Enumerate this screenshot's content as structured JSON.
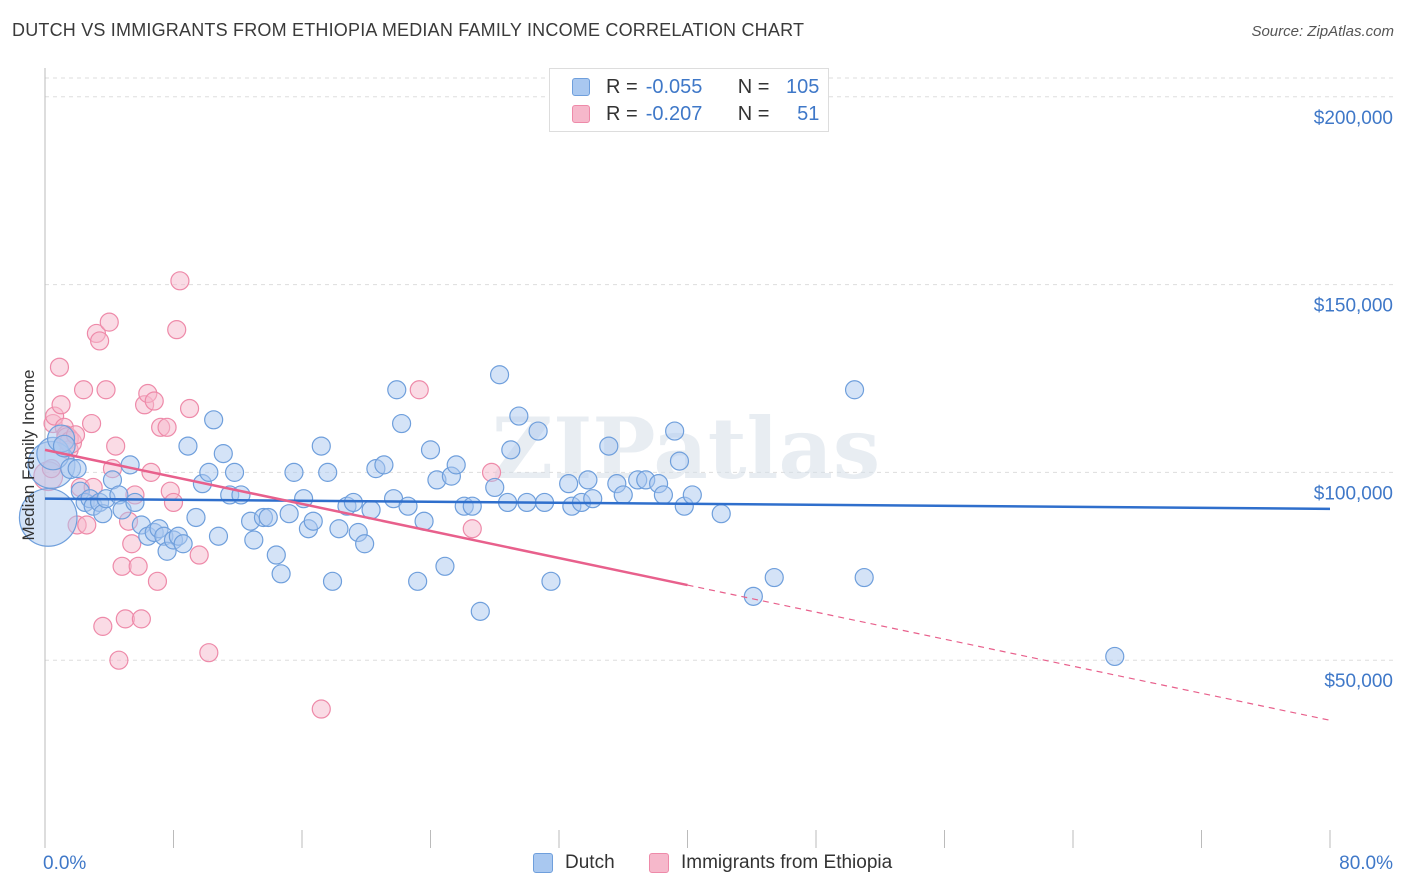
{
  "header": {
    "title": "DUTCH VS IMMIGRANTS FROM ETHIOPIA MEDIAN FAMILY INCOME CORRELATION CHART",
    "source": "Source: ZipAtlas.com"
  },
  "watermark": "ZIPatlas",
  "legend": {
    "rows": [
      {
        "r_label": "R =",
        "r_value": "-0.055",
        "n_label": "N =",
        "n_value": "105"
      },
      {
        "r_label": "R =",
        "r_value": "-0.207",
        "n_label": "N =",
        "n_value": "51"
      }
    ]
  },
  "bottom_legend": {
    "dutch": "Dutch",
    "ethiopia": "Immigrants from Ethiopia"
  },
  "colors": {
    "dutch_fill": "#a9c8f0",
    "dutch_stroke": "#6f9fdc",
    "dutch_line": "#2f6fcc",
    "eth_fill": "#f6b8cb",
    "eth_stroke": "#ee8aa9",
    "eth_line": "#e8608c",
    "grid": "#dddddd",
    "tick_label": "#3f78c8"
  },
  "chart_data": {
    "type": "scatter",
    "title": "DUTCH VS IMMIGRANTS FROM ETHIOPIA MEDIAN FAMILY INCOME CORRELATION CHART",
    "xlabel": "",
    "ylabel": "Median Family Income",
    "xlim": [
      0,
      80
    ],
    "ylim": [
      0,
      205000
    ],
    "x_tick_labels": [
      "0.0%",
      "80.0%"
    ],
    "y_ticks": [
      50000,
      100000,
      150000,
      200000
    ],
    "y_tick_labels": [
      "$50,000",
      "$100,000",
      "$150,000",
      "$200,000"
    ],
    "grid": true,
    "legend_position": "top-center",
    "series": [
      {
        "name": "Dutch",
        "r": -0.055,
        "n": 105,
        "trend": {
          "x": [
            0,
            80
          ],
          "y": [
            93000,
            90300
          ],
          "dashed_from": null
        },
        "points": [
          [
            0.2,
            88000,
            3.2
          ],
          [
            0.4,
            102000,
            2.6
          ],
          [
            0.5,
            105000,
            1.8
          ],
          [
            1.0,
            109000,
            1.5
          ],
          [
            1.2,
            107000,
            1.2
          ],
          [
            1.6,
            101000,
            1.1
          ],
          [
            2.0,
            101000,
            1.0
          ],
          [
            2.2,
            95000,
            1.0
          ],
          [
            2.5,
            92000,
            1.0
          ],
          [
            2.8,
            93000,
            1.0
          ],
          [
            3.0,
            91000,
            1.0
          ],
          [
            3.4,
            92000,
            1.0
          ],
          [
            3.6,
            89000,
            1.0
          ],
          [
            3.8,
            93000,
            1.0
          ],
          [
            4.2,
            98000,
            1.0
          ],
          [
            4.6,
            94000,
            1.0
          ],
          [
            4.8,
            90000,
            1.0
          ],
          [
            5.3,
            102000,
            1.0
          ],
          [
            5.6,
            92000,
            1.0
          ],
          [
            6.0,
            86000,
            1.0
          ],
          [
            6.4,
            83000,
            1.0
          ],
          [
            6.8,
            84000,
            1.0
          ],
          [
            7.1,
            85000,
            1.0
          ],
          [
            7.4,
            83000,
            1.0
          ],
          [
            7.6,
            79000,
            1.0
          ],
          [
            8.0,
            82000,
            1.0
          ],
          [
            8.3,
            83000,
            1.0
          ],
          [
            8.6,
            81000,
            1.0
          ],
          [
            8.9,
            107000,
            1.0
          ],
          [
            9.4,
            88000,
            1.0
          ],
          [
            9.8,
            97000,
            1.0
          ],
          [
            10.2,
            100000,
            1.0
          ],
          [
            10.5,
            114000,
            1.0
          ],
          [
            10.8,
            83000,
            1.0
          ],
          [
            11.1,
            105000,
            1.0
          ],
          [
            11.5,
            94000,
            1.0
          ],
          [
            11.8,
            100000,
            1.0
          ],
          [
            12.2,
            94000,
            1.0
          ],
          [
            12.8,
            87000,
            1.0
          ],
          [
            13.0,
            82000,
            1.0
          ],
          [
            13.6,
            88000,
            1.0
          ],
          [
            13.9,
            88000,
            1.0
          ],
          [
            14.4,
            78000,
            1.0
          ],
          [
            14.7,
            73000,
            1.0
          ],
          [
            15.2,
            89000,
            1.0
          ],
          [
            15.5,
            100000,
            1.0
          ],
          [
            16.1,
            93000,
            1.0
          ],
          [
            16.4,
            85000,
            1.0
          ],
          [
            16.7,
            87000,
            1.0
          ],
          [
            17.2,
            107000,
            1.0
          ],
          [
            17.6,
            100000,
            1.0
          ],
          [
            17.9,
            71000,
            1.0
          ],
          [
            18.3,
            85000,
            1.0
          ],
          [
            18.8,
            91000,
            1.0
          ],
          [
            19.2,
            92000,
            1.0
          ],
          [
            19.5,
            84000,
            1.0
          ],
          [
            19.9,
            81000,
            1.0
          ],
          [
            20.3,
            90000,
            1.0
          ],
          [
            20.6,
            101000,
            1.0
          ],
          [
            21.1,
            102000,
            1.0
          ],
          [
            21.7,
            93000,
            1.0
          ],
          [
            21.9,
            122000,
            1.0
          ],
          [
            22.2,
            113000,
            1.0
          ],
          [
            22.6,
            91000,
            1.0
          ],
          [
            23.2,
            71000,
            1.0
          ],
          [
            23.6,
            87000,
            1.0
          ],
          [
            24.0,
            106000,
            1.0
          ],
          [
            24.4,
            98000,
            1.0
          ],
          [
            24.9,
            75000,
            1.0
          ],
          [
            25.3,
            99000,
            1.0
          ],
          [
            25.6,
            102000,
            1.0
          ],
          [
            26.1,
            91000,
            1.0
          ],
          [
            26.6,
            91000,
            1.0
          ],
          [
            27.1,
            63000,
            1.0
          ],
          [
            28.0,
            96000,
            1.0
          ],
          [
            28.3,
            126000,
            1.0
          ],
          [
            28.8,
            92000,
            1.0
          ],
          [
            29.0,
            106000,
            1.0
          ],
          [
            29.5,
            115000,
            1.0
          ],
          [
            30.0,
            92000,
            1.0
          ],
          [
            30.7,
            111000,
            1.0
          ],
          [
            31.1,
            92000,
            1.0
          ],
          [
            31.5,
            71000,
            1.0
          ],
          [
            32.6,
            97000,
            1.0
          ],
          [
            32.8,
            91000,
            1.0
          ],
          [
            33.4,
            92000,
            1.0
          ],
          [
            33.8,
            98000,
            1.0
          ],
          [
            34.1,
            93000,
            1.0
          ],
          [
            35.1,
            107000,
            1.0
          ],
          [
            35.6,
            97000,
            1.0
          ],
          [
            36.0,
            94000,
            1.0
          ],
          [
            36.9,
            98000,
            1.0
          ],
          [
            37.4,
            98000,
            1.0
          ],
          [
            38.2,
            97000,
            1.0
          ],
          [
            38.5,
            94000,
            1.0
          ],
          [
            39.2,
            111000,
            1.0
          ],
          [
            39.5,
            103000,
            1.0
          ],
          [
            39.8,
            91000,
            1.0
          ],
          [
            40.3,
            94000,
            1.0
          ],
          [
            42.1,
            89000,
            1.0
          ],
          [
            44.1,
            67000,
            1.0
          ],
          [
            45.4,
            72000,
            1.0
          ],
          [
            50.4,
            122000,
            1.0
          ],
          [
            51.0,
            72000,
            1.0
          ],
          [
            66.6,
            51000,
            1.0
          ]
        ]
      },
      {
        "name": "Immigrants from Ethiopia",
        "r": -0.207,
        "n": 51,
        "trend": {
          "x": [
            0,
            80
          ],
          "y": [
            106000,
            34000
          ],
          "dashed_from": 40
        },
        "points": [
          [
            0.2,
            99000,
            1.6
          ],
          [
            0.4,
            101000,
            1.0
          ],
          [
            0.5,
            113000,
            1.0
          ],
          [
            0.6,
            115000,
            1.0
          ],
          [
            0.9,
            128000,
            1.0
          ],
          [
            1.0,
            118000,
            1.0
          ],
          [
            1.2,
            112000,
            1.0
          ],
          [
            1.3,
            110000,
            1.0
          ],
          [
            1.4,
            109000,
            1.2
          ],
          [
            1.5,
            106000,
            1.0
          ],
          [
            1.6,
            108000,
            1.2
          ],
          [
            1.9,
            110000,
            1.0
          ],
          [
            2.0,
            86000,
            1.0
          ],
          [
            2.2,
            96000,
            1.0
          ],
          [
            2.4,
            122000,
            1.0
          ],
          [
            2.6,
            86000,
            1.0
          ],
          [
            2.9,
            113000,
            1.0
          ],
          [
            3.0,
            96000,
            1.0
          ],
          [
            3.2,
            137000,
            1.0
          ],
          [
            3.4,
            135000,
            1.0
          ],
          [
            3.6,
            59000,
            1.0
          ],
          [
            3.8,
            122000,
            1.0
          ],
          [
            4.0,
            140000,
            1.0
          ],
          [
            4.2,
            101000,
            1.0
          ],
          [
            4.4,
            107000,
            1.0
          ],
          [
            4.6,
            50000,
            1.0
          ],
          [
            4.8,
            75000,
            1.0
          ],
          [
            5.0,
            61000,
            1.0
          ],
          [
            5.2,
            87000,
            1.0
          ],
          [
            5.4,
            81000,
            1.0
          ],
          [
            5.6,
            94000,
            1.0
          ],
          [
            5.8,
            75000,
            1.0
          ],
          [
            6.0,
            61000,
            1.0
          ],
          [
            6.2,
            118000,
            1.0
          ],
          [
            6.4,
            121000,
            1.0
          ],
          [
            6.6,
            100000,
            1.0
          ],
          [
            6.8,
            119000,
            1.0
          ],
          [
            7.0,
            71000,
            1.0
          ],
          [
            7.2,
            112000,
            1.0
          ],
          [
            7.6,
            112000,
            1.0
          ],
          [
            7.8,
            95000,
            1.0
          ],
          [
            8.0,
            92000,
            1.0
          ],
          [
            8.2,
            138000,
            1.0
          ],
          [
            8.4,
            151000,
            1.0
          ],
          [
            9.0,
            117000,
            1.0
          ],
          [
            9.6,
            78000,
            1.0
          ],
          [
            10.2,
            52000,
            1.0
          ],
          [
            17.2,
            37000,
            1.0
          ],
          [
            23.3,
            122000,
            1.0
          ],
          [
            26.6,
            85000,
            1.0
          ],
          [
            27.8,
            100000,
            1.0
          ]
        ]
      }
    ]
  }
}
